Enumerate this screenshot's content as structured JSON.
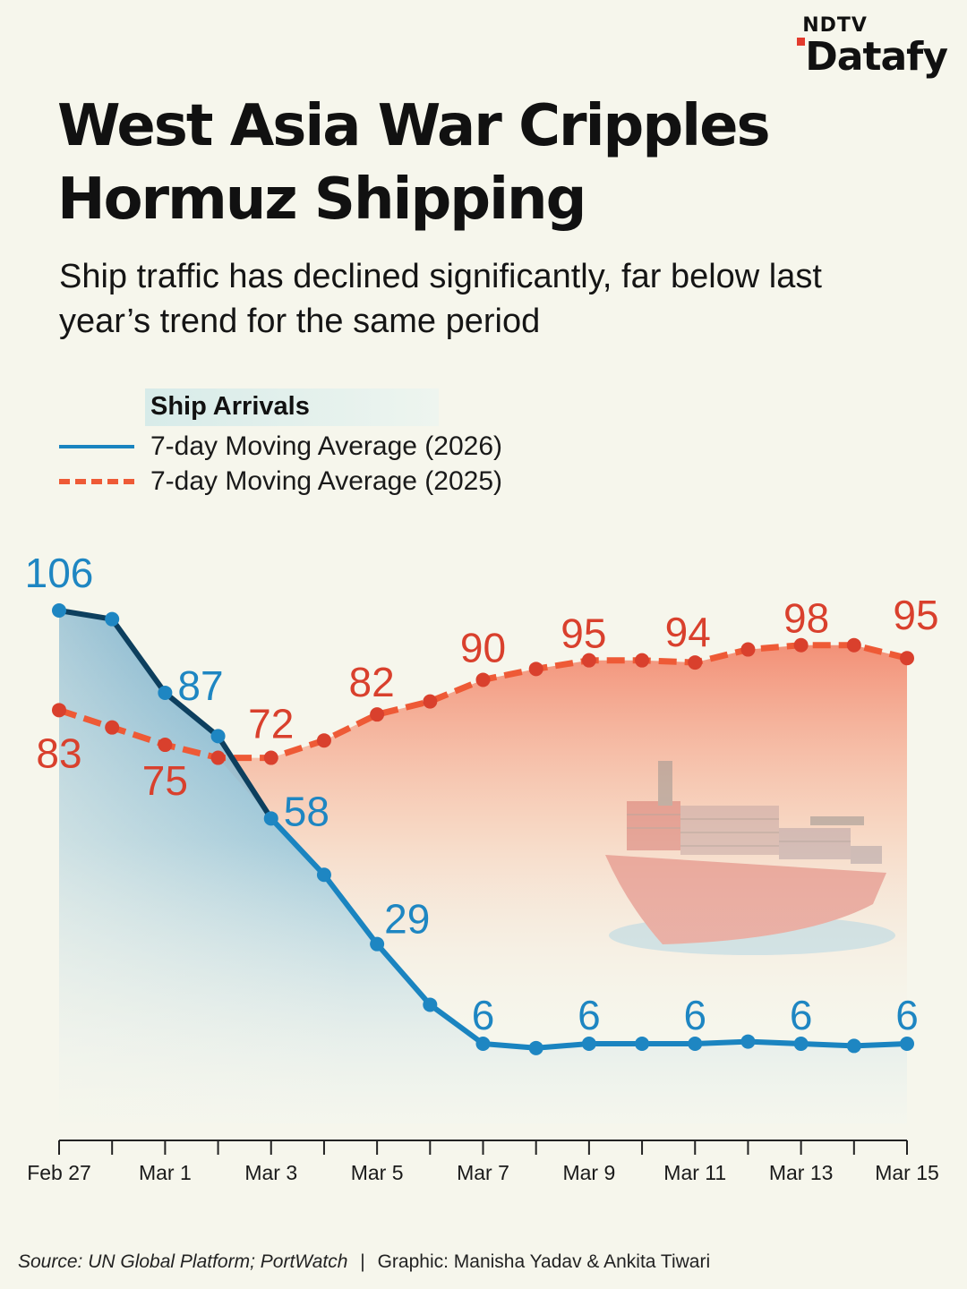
{
  "brand": {
    "top": "NDTV",
    "main": "Datafy"
  },
  "title": "West Asia War Cripples Hormuz Shipping",
  "subtitle": "Ship traffic has declined significantly, far below last year’s trend for the same period",
  "legend": {
    "title": "Ship Arrivals",
    "series_2026": "7-day Moving Average (2026)",
    "series_2025": "7-day Moving Average (2025)"
  },
  "colors": {
    "s2026": "#1a84c0",
    "s2026_dark": "#0d3f5e",
    "s2025": "#ee5a36",
    "background": "#f6f6ec"
  },
  "chart_data": {
    "type": "line",
    "title": "Ship Arrivals",
    "x": [
      "Feb 27",
      "Feb 28",
      "Mar 1",
      "Mar 2",
      "Mar 3",
      "Mar 4",
      "Mar 5",
      "Mar 6",
      "Mar 7",
      "Mar 8",
      "Mar 9",
      "Mar 10",
      "Mar 11",
      "Mar 12",
      "Mar 13",
      "Mar 14",
      "Mar 15"
    ],
    "x_tick_labels": [
      "Feb 27",
      "",
      "Mar 1",
      "",
      "Mar 3",
      "",
      "Mar 5",
      "",
      "Mar 7",
      "",
      "Mar 9",
      "",
      "Mar 11",
      "",
      "Mar 13",
      "",
      "Mar 15"
    ],
    "ylim": [
      -10,
      110
    ],
    "grid": false,
    "series": [
      {
        "name": "7-day Moving Average (2026)",
        "values": [
          106,
          104,
          87,
          77,
          58,
          45,
          29,
          15,
          6,
          5,
          6,
          6,
          6,
          6.5,
          6,
          5.5,
          6
        ],
        "labels": {
          "0": "106",
          "2": "87",
          "4": "58",
          "6": "29",
          "8": "6",
          "10": "6",
          "12": "6",
          "14": "6",
          "16": "6"
        }
      },
      {
        "name": "7-day Moving Average (2025)",
        "values": [
          83,
          79,
          75,
          72,
          72,
          76,
          82,
          85,
          90,
          92.5,
          94.5,
          94.5,
          94,
          97,
          98,
          98,
          95
        ],
        "labels": {
          "0": "83",
          "2": "75",
          "4": "72",
          "6": "82",
          "8": "90",
          "10": "95",
          "12": "94",
          "14": "98",
          "16": "95"
        }
      }
    ]
  },
  "source": {
    "text": "Source: UN Global Platform; PortWatch",
    "separator": "|",
    "credit": "Graphic: Manisha Yadav & Ankita Tiwari"
  }
}
